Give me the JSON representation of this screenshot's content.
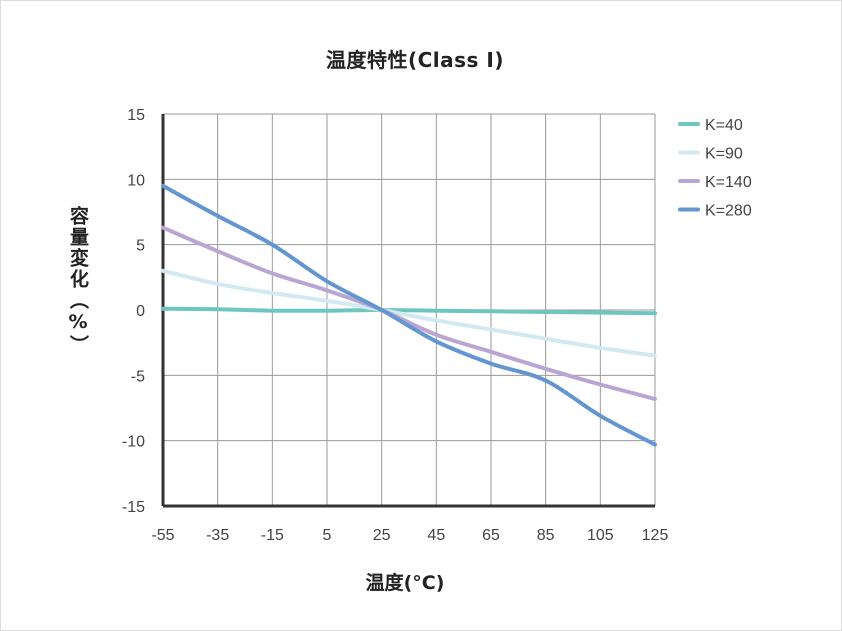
{
  "chart_data": {
    "type": "line",
    "title": "温度特性(Class I)",
    "xlabel": "温度(°C)",
    "ylabel": "容量変化（%）",
    "xlim": [
      -55,
      125
    ],
    "ylim": [
      -15,
      15
    ],
    "x_ticks": [
      "-55",
      "-35",
      "-15",
      "5",
      "25",
      "45",
      "65",
      "85",
      "105",
      "125"
    ],
    "y_ticks": [
      "15",
      "10",
      "5",
      "0",
      "-5",
      "-10",
      "-15"
    ],
    "grid": true,
    "legend_position": "right",
    "x": [
      -55,
      -35,
      -15,
      5,
      25,
      45,
      65,
      85,
      105,
      125
    ],
    "series": [
      {
        "name": "K=40",
        "color": "#6fc6c0",
        "values": [
          0.1,
          0.05,
          -0.05,
          -0.05,
          0,
          -0.05,
          -0.1,
          -0.15,
          -0.2,
          -0.25
        ]
      },
      {
        "name": "K=90",
        "color": "#d3e9f1",
        "values": [
          3.0,
          2.0,
          1.3,
          0.7,
          0,
          -0.8,
          -1.5,
          -2.2,
          -2.9,
          -3.5
        ]
      },
      {
        "name": "K=140",
        "color": "#b9a5d3",
        "values": [
          6.3,
          4.5,
          2.8,
          1.5,
          0,
          -1.9,
          -3.2,
          -4.5,
          -5.7,
          -6.8
        ]
      },
      {
        "name": "K=280",
        "color": "#6396d0",
        "values": [
          9.5,
          7.2,
          5.0,
          2.2,
          0,
          -2.4,
          -4.1,
          -5.4,
          -8.1,
          -10.3
        ]
      }
    ]
  }
}
